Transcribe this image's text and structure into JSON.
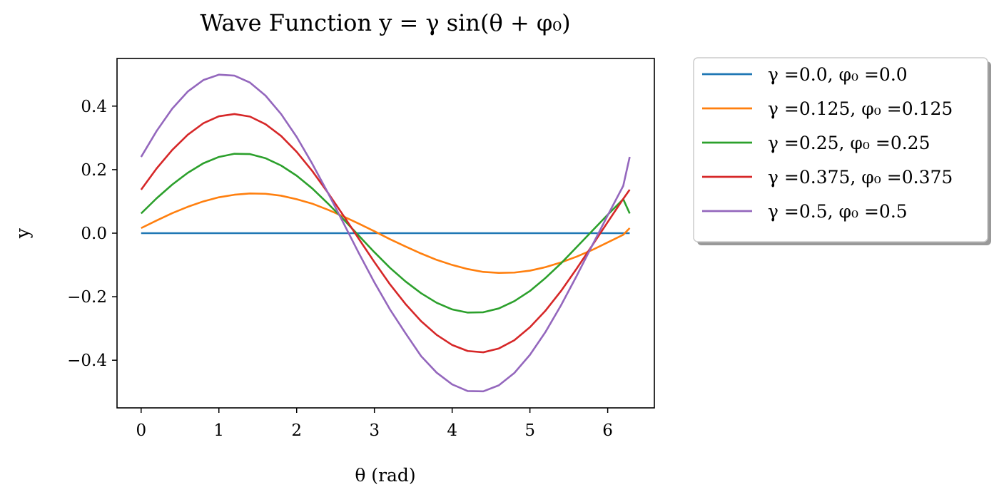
{
  "chart_data": {
    "type": "line",
    "title": "Wave Function y = γ sin(θ + φ₀)",
    "xlabel": "θ (rad)",
    "ylabel": "y",
    "xlim": [
      -0.31,
      6.6
    ],
    "ylim": [
      -0.55,
      0.55
    ],
    "xticks": [
      0,
      1,
      2,
      3,
      4,
      5,
      6
    ],
    "yticks": [
      -0.4,
      -0.2,
      0.0,
      0.2,
      0.4
    ],
    "ytick_labels": [
      "−0.4",
      "−0.2",
      "0.0",
      "0.2",
      "0.4"
    ],
    "grid": false,
    "legend_position": "outside-right-top",
    "x": [
      0.0,
      0.2,
      0.4,
      0.6,
      0.8,
      1.0,
      1.2,
      1.4,
      1.6,
      1.8,
      2.0,
      2.2,
      2.4,
      2.6,
      2.8,
      3.0,
      3.2,
      3.4,
      3.6,
      3.8,
      4.0,
      4.2,
      4.4,
      4.6,
      4.8,
      5.0,
      5.2,
      5.4,
      5.6,
      5.8,
      6.0,
      6.2,
      6.283
    ],
    "series": [
      {
        "name": "γ =0.0, φ₀ =0.0",
        "color": "#1f77b4",
        "values": [
          0.0,
          0.0,
          0.0,
          0.0,
          0.0,
          0.0,
          0.0,
          0.0,
          0.0,
          0.0,
          0.0,
          0.0,
          0.0,
          0.0,
          0.0,
          0.0,
          0.0,
          0.0,
          0.0,
          0.0,
          0.0,
          0.0,
          0.0,
          0.0,
          0.0,
          0.0,
          0.0,
          0.0,
          0.0,
          0.0,
          0.0,
          0.0,
          0.0
        ]
      },
      {
        "name": "γ =0.125, φ₀ =0.125",
        "color": "#ff7f0e",
        "values": [
          0.016,
          0.04,
          0.063,
          0.083,
          0.1,
          0.113,
          0.121,
          0.125,
          0.124,
          0.118,
          0.107,
          0.093,
          0.074,
          0.053,
          0.03,
          0.006,
          -0.019,
          -0.042,
          -0.064,
          -0.084,
          -0.1,
          -0.113,
          -0.122,
          -0.125,
          -0.124,
          -0.118,
          -0.107,
          -0.092,
          -0.074,
          -0.053,
          -0.029,
          -0.005,
          0.016
        ]
      },
      {
        "name": "γ =0.25, φ₀ =0.25",
        "color": "#2ca02c",
        "values": [
          0.062,
          0.11,
          0.153,
          0.19,
          0.22,
          0.24,
          0.25,
          0.249,
          0.236,
          0.213,
          0.181,
          0.141,
          0.094,
          0.044,
          -0.008,
          -0.06,
          -0.109,
          -0.152,
          -0.189,
          -0.219,
          -0.24,
          -0.25,
          -0.249,
          -0.237,
          -0.214,
          -0.182,
          -0.141,
          -0.095,
          -0.044,
          0.007,
          0.058,
          0.107,
          0.062
        ]
      },
      {
        "name": "γ =0.375, φ₀ =0.375",
        "color": "#d62728",
        "values": [
          0.137,
          0.204,
          0.262,
          0.31,
          0.346,
          0.368,
          0.375,
          0.367,
          0.343,
          0.306,
          0.256,
          0.196,
          0.128,
          0.056,
          -0.018,
          -0.091,
          -0.161,
          -0.223,
          -0.277,
          -0.32,
          -0.352,
          -0.371,
          -0.375,
          -0.363,
          -0.337,
          -0.296,
          -0.244,
          -0.182,
          -0.112,
          -0.039,
          0.035,
          0.108,
          0.137
        ]
      },
      {
        "name": "γ =0.5, φ₀ =0.5",
        "color": "#9467bd",
        "values": [
          0.24,
          0.322,
          0.392,
          0.446,
          0.482,
          0.499,
          0.496,
          0.474,
          0.433,
          0.375,
          0.303,
          0.219,
          0.128,
          0.033,
          -0.063,
          -0.155,
          -0.24,
          -0.315,
          -0.387,
          -0.439,
          -0.476,
          -0.497,
          -0.498,
          -0.479,
          -0.44,
          -0.383,
          -0.311,
          -0.227,
          -0.135,
          -0.039,
          0.056,
          0.149,
          0.24
        ]
      }
    ]
  }
}
